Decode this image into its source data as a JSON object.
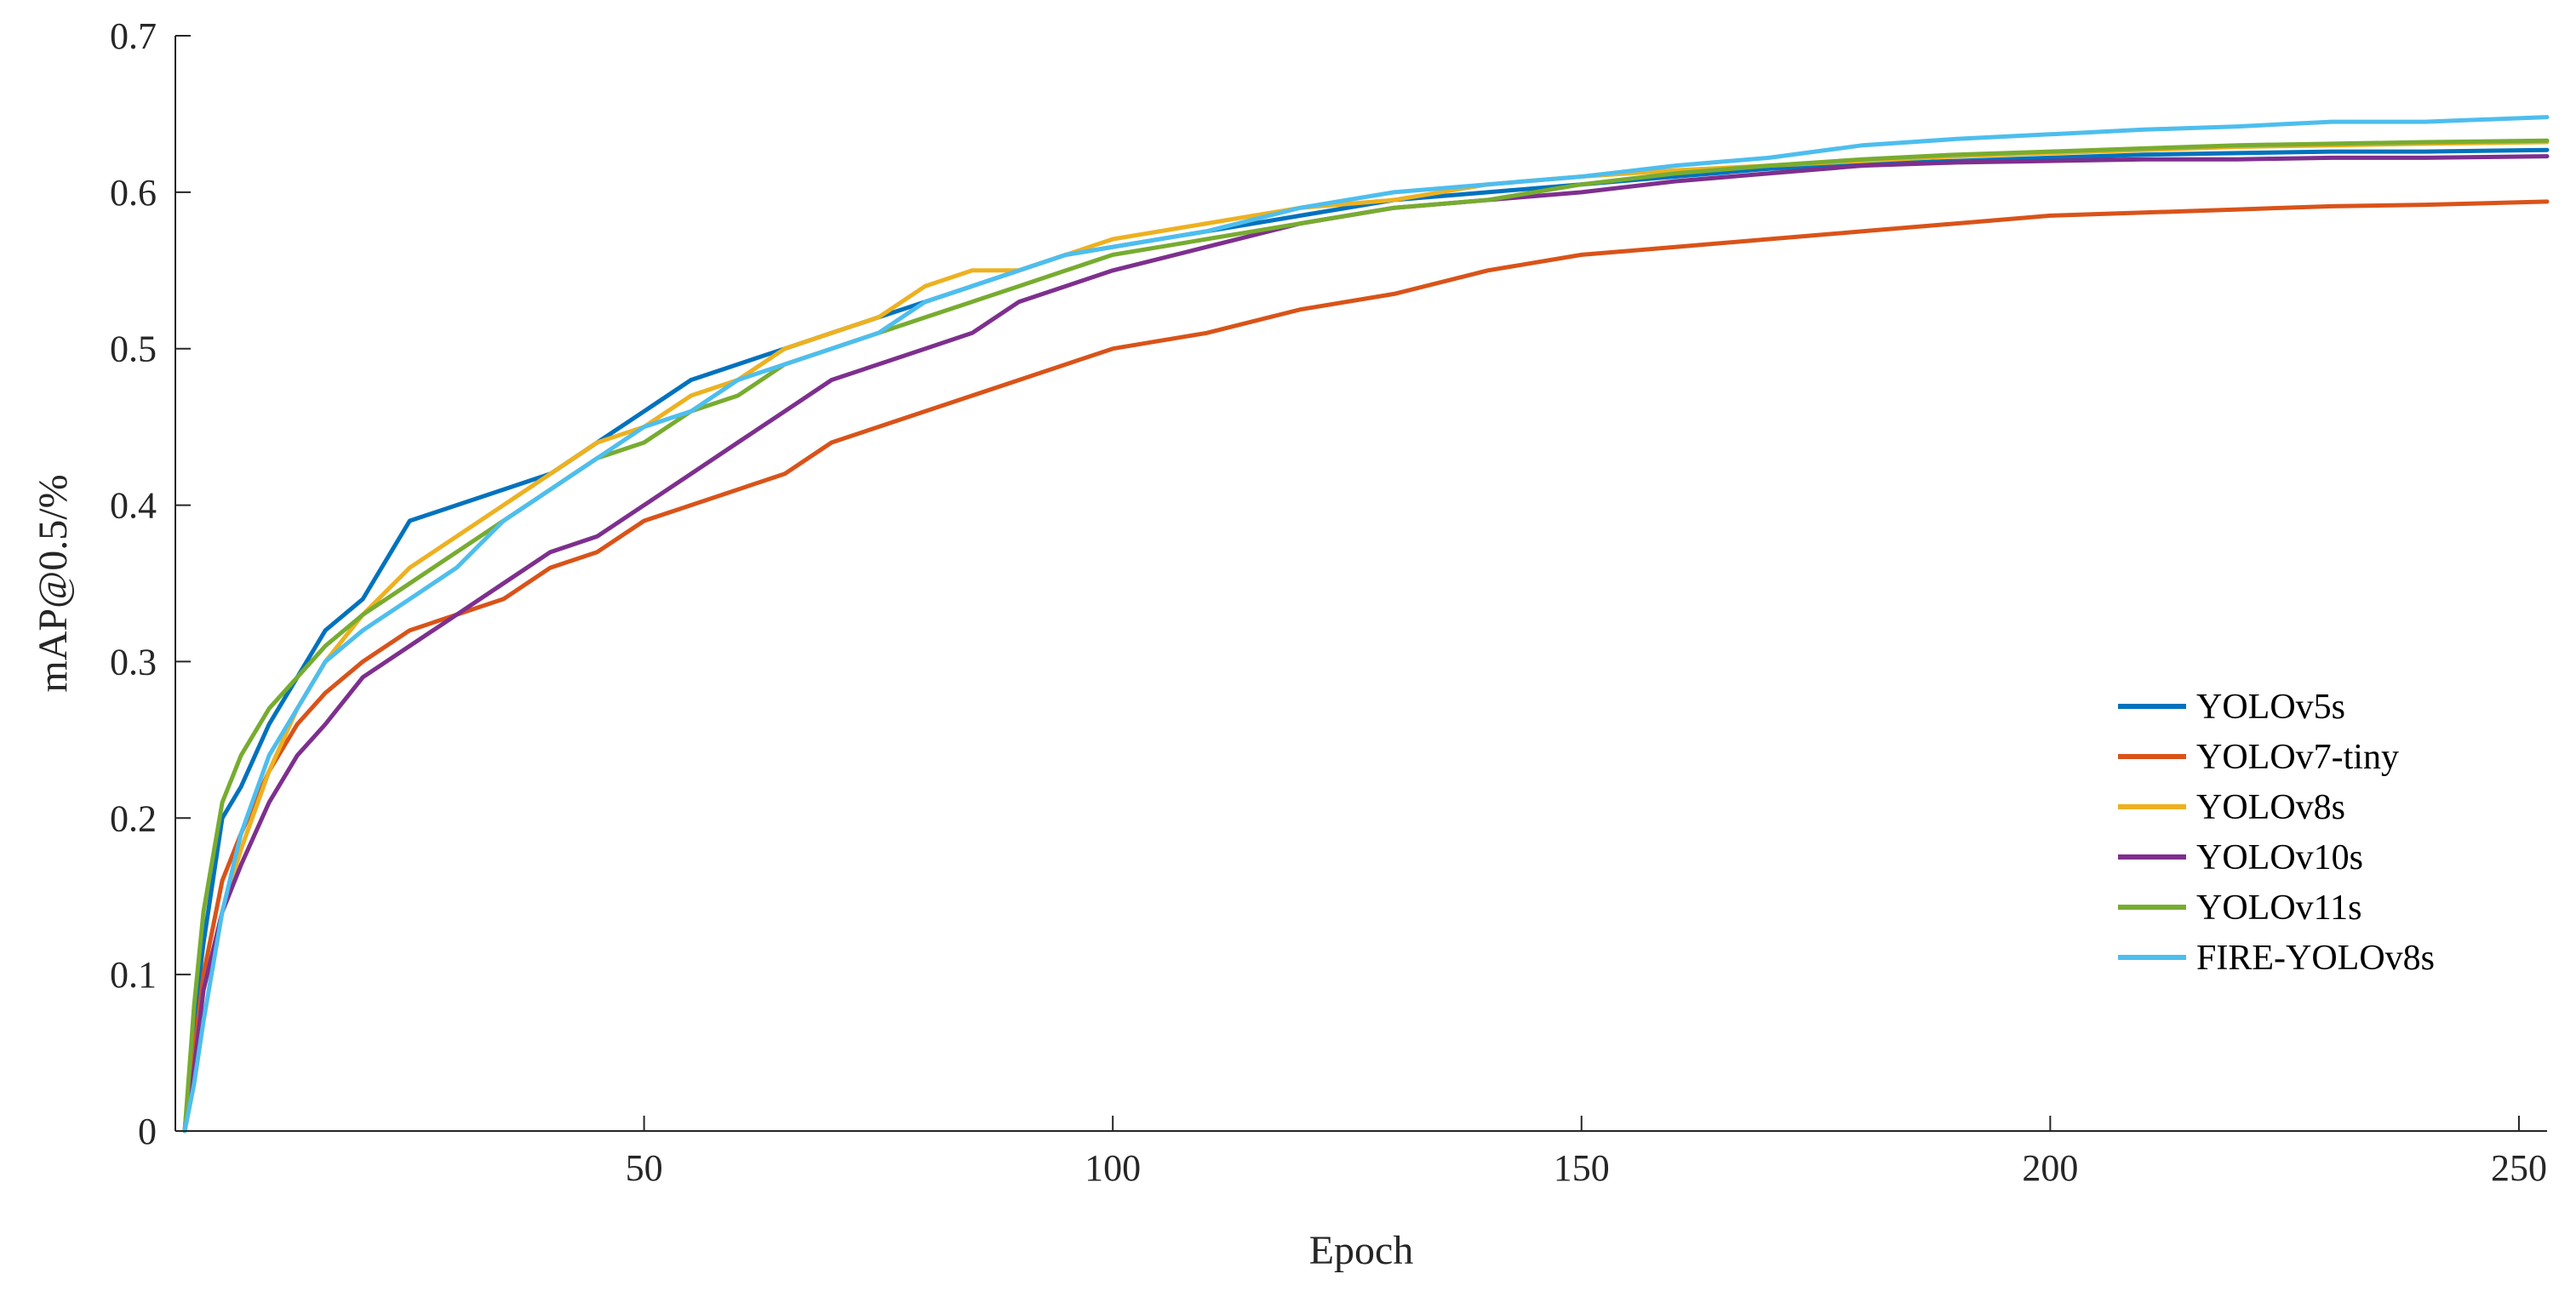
{
  "chart_data": {
    "type": "line",
    "title": "",
    "xlabel": "Epoch",
    "ylabel": "mAP@0.5/%",
    "xlim": [
      0,
      253
    ],
    "ylim": [
      0,
      0.7
    ],
    "xticks": [
      50,
      100,
      150,
      200,
      250
    ],
    "yticks": [
      0,
      0.1,
      0.2,
      0.3,
      0.4,
      0.5,
      0.6,
      0.7
    ],
    "xtick_labels": [
      "50",
      "100",
      "150",
      "200",
      "250"
    ],
    "ytick_labels": [
      "0",
      "0.1",
      "0.2",
      "0.3",
      "0.4",
      "0.5",
      "0.6",
      "0.7"
    ],
    "grid": false,
    "legend_position": "right",
    "x": [
      1,
      2,
      3,
      5,
      7,
      10,
      13,
      16,
      20,
      25,
      30,
      35,
      40,
      45,
      50,
      55,
      60,
      65,
      70,
      75,
      80,
      85,
      90,
      95,
      100,
      110,
      120,
      130,
      140,
      150,
      160,
      170,
      180,
      190,
      200,
      210,
      220,
      230,
      240,
      253
    ],
    "series": [
      {
        "name": "YOLOv5s",
        "color": "#0072BD",
        "values": [
          0.0,
          0.07,
          0.12,
          0.2,
          0.22,
          0.26,
          0.29,
          0.32,
          0.34,
          0.39,
          0.4,
          0.41,
          0.42,
          0.44,
          0.46,
          0.48,
          0.49,
          0.5,
          0.51,
          0.52,
          0.53,
          0.54,
          0.55,
          0.56,
          0.565,
          0.575,
          0.585,
          0.595,
          0.6,
          0.605,
          0.61,
          0.615,
          0.618,
          0.62,
          0.622,
          0.624,
          0.625,
          0.626,
          0.626,
          0.627
        ]
      },
      {
        "name": "YOLOv7-tiny",
        "color": "#D95319",
        "values": [
          0.0,
          0.05,
          0.1,
          0.16,
          0.19,
          0.23,
          0.26,
          0.28,
          0.3,
          0.32,
          0.33,
          0.34,
          0.36,
          0.37,
          0.39,
          0.4,
          0.41,
          0.42,
          0.44,
          0.45,
          0.46,
          0.47,
          0.48,
          0.49,
          0.5,
          0.51,
          0.525,
          0.535,
          0.55,
          0.56,
          0.565,
          0.57,
          0.575,
          0.58,
          0.585,
          0.587,
          0.589,
          0.591,
          0.592,
          0.594
        ]
      },
      {
        "name": "YOLOv8s",
        "color": "#EDB120",
        "values": [
          0.0,
          0.04,
          0.09,
          0.14,
          0.18,
          0.23,
          0.27,
          0.3,
          0.33,
          0.36,
          0.38,
          0.4,
          0.42,
          0.44,
          0.45,
          0.47,
          0.48,
          0.5,
          0.51,
          0.52,
          0.54,
          0.55,
          0.55,
          0.56,
          0.57,
          0.58,
          0.59,
          0.595,
          0.605,
          0.61,
          0.614,
          0.617,
          0.62,
          0.623,
          0.625,
          0.627,
          0.629,
          0.63,
          0.631,
          0.632
        ]
      },
      {
        "name": "YOLOv10s",
        "color": "#7E2F8E",
        "values": [
          0.0,
          0.04,
          0.09,
          0.14,
          0.17,
          0.21,
          0.24,
          0.26,
          0.29,
          0.31,
          0.33,
          0.35,
          0.37,
          0.38,
          0.4,
          0.42,
          0.44,
          0.46,
          0.48,
          0.49,
          0.5,
          0.51,
          0.53,
          0.54,
          0.55,
          0.565,
          0.58,
          0.59,
          0.595,
          0.6,
          0.607,
          0.612,
          0.617,
          0.619,
          0.62,
          0.621,
          0.621,
          0.622,
          0.622,
          0.623
        ]
      },
      {
        "name": "YOLOv11s",
        "color": "#77AC30",
        "values": [
          0.0,
          0.08,
          0.14,
          0.21,
          0.24,
          0.27,
          0.29,
          0.31,
          0.33,
          0.35,
          0.37,
          0.39,
          0.41,
          0.43,
          0.44,
          0.46,
          0.47,
          0.49,
          0.5,
          0.51,
          0.52,
          0.53,
          0.54,
          0.55,
          0.56,
          0.57,
          0.58,
          0.59,
          0.595,
          0.605,
          0.612,
          0.617,
          0.621,
          0.624,
          0.626,
          0.628,
          0.63,
          0.631,
          0.632,
          0.633
        ]
      },
      {
        "name": "FIRE-YOLOv8s",
        "color": "#4DBEEE",
        "values": [
          0.0,
          0.03,
          0.07,
          0.14,
          0.19,
          0.24,
          0.27,
          0.3,
          0.32,
          0.34,
          0.36,
          0.39,
          0.41,
          0.43,
          0.45,
          0.46,
          0.48,
          0.49,
          0.5,
          0.51,
          0.53,
          0.54,
          0.55,
          0.56,
          0.565,
          0.575,
          0.59,
          0.6,
          0.605,
          0.61,
          0.617,
          0.622,
          0.63,
          0.634,
          0.637,
          0.64,
          0.642,
          0.645,
          0.645,
          0.648
        ]
      }
    ]
  }
}
